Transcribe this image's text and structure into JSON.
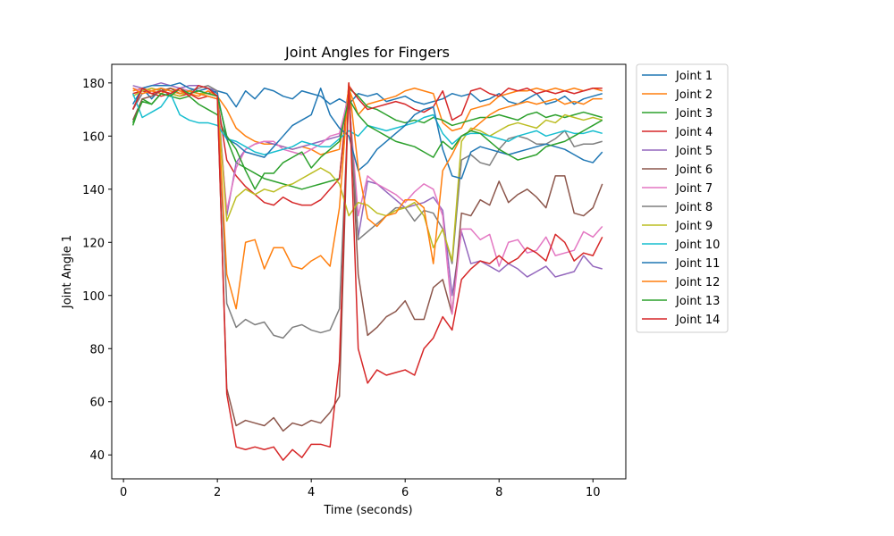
{
  "chart_data": {
    "type": "line",
    "title": "Joint Angles for Fingers",
    "xlabel": "Time (seconds)",
    "ylabel": "Joint Angle 1",
    "xlim": [
      -0.25,
      10.7
    ],
    "ylim": [
      31,
      187
    ],
    "xticks": [
      0,
      2,
      4,
      6,
      8,
      10
    ],
    "yticks": [
      40,
      60,
      80,
      100,
      120,
      140,
      160,
      180
    ],
    "grid": false,
    "legend": "outside-right",
    "x": [
      0.2,
      0.4,
      0.6,
      0.8,
      1.0,
      1.2,
      1.4,
      1.6,
      1.8,
      2.0,
      2.2,
      2.4,
      2.6,
      2.8,
      3.0,
      3.2,
      3.4,
      3.6,
      3.8,
      4.0,
      4.2,
      4.4,
      4.6,
      4.8,
      5.0,
      5.2,
      5.4,
      5.6,
      5.8,
      6.0,
      6.2,
      6.4,
      6.6,
      6.8,
      7.0,
      7.2,
      7.4,
      7.6,
      7.8,
      8.0,
      8.2,
      8.4,
      8.6,
      8.8,
      9.0,
      9.2,
      9.4,
      9.6,
      9.8,
      10.0,
      10.2
    ],
    "series": [
      {
        "name": "Joint 1",
        "color": "#1f77b4",
        "values": [
          172,
          178,
          174,
          178,
          175,
          178,
          176,
          177,
          176,
          177,
          176,
          171,
          177,
          174,
          178,
          177,
          175,
          174,
          177,
          176,
          175,
          172,
          174,
          172,
          176,
          175,
          176,
          173,
          174,
          175,
          173,
          172,
          173,
          174,
          176,
          175,
          176,
          173,
          174,
          176,
          173,
          172,
          174,
          176,
          172,
          173,
          175,
          172,
          174,
          175,
          176
        ]
      },
      {
        "name": "Joint 2",
        "color": "#ff7f0e",
        "values": [
          177,
          178,
          177,
          176,
          178,
          177,
          176,
          175,
          177,
          175,
          170,
          163,
          160,
          158,
          157,
          157,
          156,
          155,
          156,
          155,
          153,
          154,
          155,
          178,
          168,
          172,
          173,
          174,
          175,
          177,
          178,
          177,
          176,
          165,
          162,
          163,
          170,
          171,
          172,
          175,
          176,
          177,
          177,
          178,
          177,
          178,
          177,
          178,
          177,
          178,
          177
        ]
      },
      {
        "name": "Joint 3",
        "color": "#2ca02c",
        "values": [
          164,
          174,
          172,
          176,
          175,
          174,
          175,
          172,
          170,
          168,
          159,
          150,
          148,
          146,
          144,
          143,
          142,
          141,
          140,
          141,
          142,
          143,
          144,
          178,
          175,
          171,
          170,
          168,
          166,
          165,
          166,
          165,
          167,
          166,
          164,
          165,
          166,
          167,
          167,
          168,
          167,
          166,
          168,
          169,
          167,
          168,
          167,
          168,
          169,
          168,
          167
        ]
      },
      {
        "name": "Joint 4",
        "color": "#d62728",
        "values": [
          176,
          177,
          176,
          175,
          176,
          175,
          176,
          174,
          175,
          174,
          151,
          145,
          141,
          138,
          135,
          134,
          137,
          135,
          134,
          134,
          136,
          140,
          144,
          179,
          174,
          170,
          171,
          172,
          173,
          172,
          170,
          169,
          171,
          177,
          166,
          168,
          177,
          178,
          176,
          175,
          178,
          177,
          178,
          176,
          177,
          176,
          177,
          176,
          177,
          178,
          178
        ]
      },
      {
        "name": "Joint 5",
        "color": "#9467bd",
        "values": [
          179,
          178,
          179,
          180,
          179,
          178,
          179,
          179,
          178,
          177,
          130,
          150,
          155,
          157,
          158,
          157,
          156,
          155,
          156,
          157,
          158,
          159,
          160,
          176,
          122,
          143,
          142,
          139,
          136,
          133,
          134,
          135,
          137,
          132,
          100,
          124,
          112,
          113,
          111,
          109,
          112,
          110,
          107,
          109,
          111,
          107,
          108,
          109,
          115,
          111,
          110
        ]
      },
      {
        "name": "Joint 6",
        "color": "#8c564b",
        "values": [
          166,
          174,
          175,
          177,
          178,
          176,
          177,
          176,
          175,
          174,
          65,
          51,
          53,
          52,
          51,
          54,
          49,
          52,
          51,
          53,
          52,
          56,
          62,
          180,
          108,
          85,
          88,
          92,
          94,
          98,
          91,
          91,
          103,
          106,
          93,
          131,
          130,
          136,
          134,
          143,
          135,
          138,
          140,
          137,
          133,
          145,
          145,
          131,
          130,
          133,
          142
        ]
      },
      {
        "name": "Joint 7",
        "color": "#e377c2",
        "values": [
          178,
          177,
          178,
          177,
          176,
          178,
          177,
          176,
          175,
          174,
          132,
          148,
          155,
          157,
          158,
          158,
          155,
          154,
          153,
          155,
          157,
          160,
          161,
          175,
          130,
          145,
          142,
          140,
          138,
          135,
          139,
          142,
          140,
          130,
          93,
          125,
          125,
          121,
          123,
          111,
          120,
          121,
          116,
          117,
          122,
          115,
          116,
          117,
          124,
          122,
          126
        ]
      },
      {
        "name": "Joint 8",
        "color": "#7f7f7f",
        "values": [
          170,
          176,
          177,
          178,
          177,
          176,
          177,
          178,
          179,
          177,
          97,
          88,
          91,
          89,
          90,
          85,
          84,
          88,
          89,
          87,
          86,
          87,
          95,
          175,
          121,
          124,
          127,
          130,
          133,
          133,
          128,
          132,
          131,
          125,
          112,
          151,
          153,
          150,
          149,
          155,
          159,
          160,
          159,
          157,
          157,
          159,
          162,
          156,
          157,
          157,
          158
        ]
      },
      {
        "name": "Joint 9",
        "color": "#bcbd22",
        "values": [
          175,
          177,
          178,
          177,
          176,
          175,
          177,
          176,
          176,
          175,
          128,
          137,
          140,
          138,
          140,
          139,
          141,
          142,
          144,
          146,
          148,
          146,
          142,
          130,
          135,
          134,
          131,
          130,
          132,
          133,
          135,
          130,
          118,
          125,
          113,
          158,
          163,
          162,
          160,
          162,
          164,
          165,
          164,
          163,
          166,
          165,
          168,
          167,
          166,
          167,
          166
        ]
      },
      {
        "name": "Joint 10",
        "color": "#17becf",
        "values": [
          176,
          167,
          169,
          171,
          176,
          168,
          166,
          165,
          165,
          164,
          159,
          158,
          156,
          154,
          153,
          154,
          155,
          156,
          158,
          157,
          156,
          156,
          159,
          162,
          160,
          164,
          163,
          162,
          163,
          164,
          165,
          167,
          168,
          161,
          157,
          160,
          161,
          161,
          160,
          159,
          158,
          160,
          161,
          162,
          160,
          161,
          162,
          161,
          161,
          162,
          161
        ]
      },
      {
        "name": "Joint 11",
        "color": "#1f77b4",
        "values": [
          170,
          178,
          179,
          179,
          179,
          180,
          178,
          177,
          178,
          176,
          159,
          157,
          154,
          153,
          152,
          156,
          160,
          164,
          166,
          168,
          178,
          168,
          163,
          160,
          147,
          150,
          155,
          158,
          161,
          164,
          168,
          170,
          171,
          155,
          145,
          144,
          154,
          156,
          155,
          154,
          153,
          154,
          155,
          156,
          157,
          156,
          155,
          153,
          151,
          150,
          154
        ]
      },
      {
        "name": "Joint 12",
        "color": "#ff7f0e",
        "values": [
          178,
          176,
          177,
          178,
          177,
          176,
          177,
          176,
          175,
          174,
          108,
          95,
          120,
          121,
          110,
          118,
          118,
          111,
          110,
          113,
          115,
          111,
          133,
          180,
          148,
          129,
          126,
          130,
          131,
          136,
          136,
          133,
          112,
          147,
          153,
          160,
          162,
          165,
          168,
          170,
          171,
          172,
          173,
          172,
          173,
          174,
          172,
          173,
          172,
          174,
          174
        ]
      },
      {
        "name": "Joint 13",
        "color": "#2ca02c",
        "values": [
          165,
          173,
          172,
          176,
          175,
          178,
          176,
          177,
          176,
          175,
          160,
          155,
          147,
          140,
          146,
          146,
          150,
          152,
          154,
          148,
          152,
          155,
          158,
          174,
          168,
          164,
          162,
          160,
          158,
          157,
          156,
          154,
          152,
          158,
          155,
          160,
          162,
          161,
          158,
          155,
          153,
          151,
          152,
          153,
          156,
          157,
          158,
          160,
          162,
          164,
          166
        ]
      },
      {
        "name": "Joint 14",
        "color": "#d62728",
        "values": [
          170,
          178,
          176,
          177,
          176,
          178,
          175,
          179,
          178,
          175,
          63,
          43,
          42,
          43,
          42,
          43,
          38,
          42,
          39,
          44,
          44,
          43,
          75,
          180,
          80,
          67,
          72,
          70,
          71,
          72,
          70,
          80,
          84,
          92,
          87,
          106,
          110,
          113,
          112,
          115,
          112,
          114,
          118,
          116,
          113,
          123,
          120,
          113,
          116,
          115,
          122
        ]
      }
    ]
  }
}
